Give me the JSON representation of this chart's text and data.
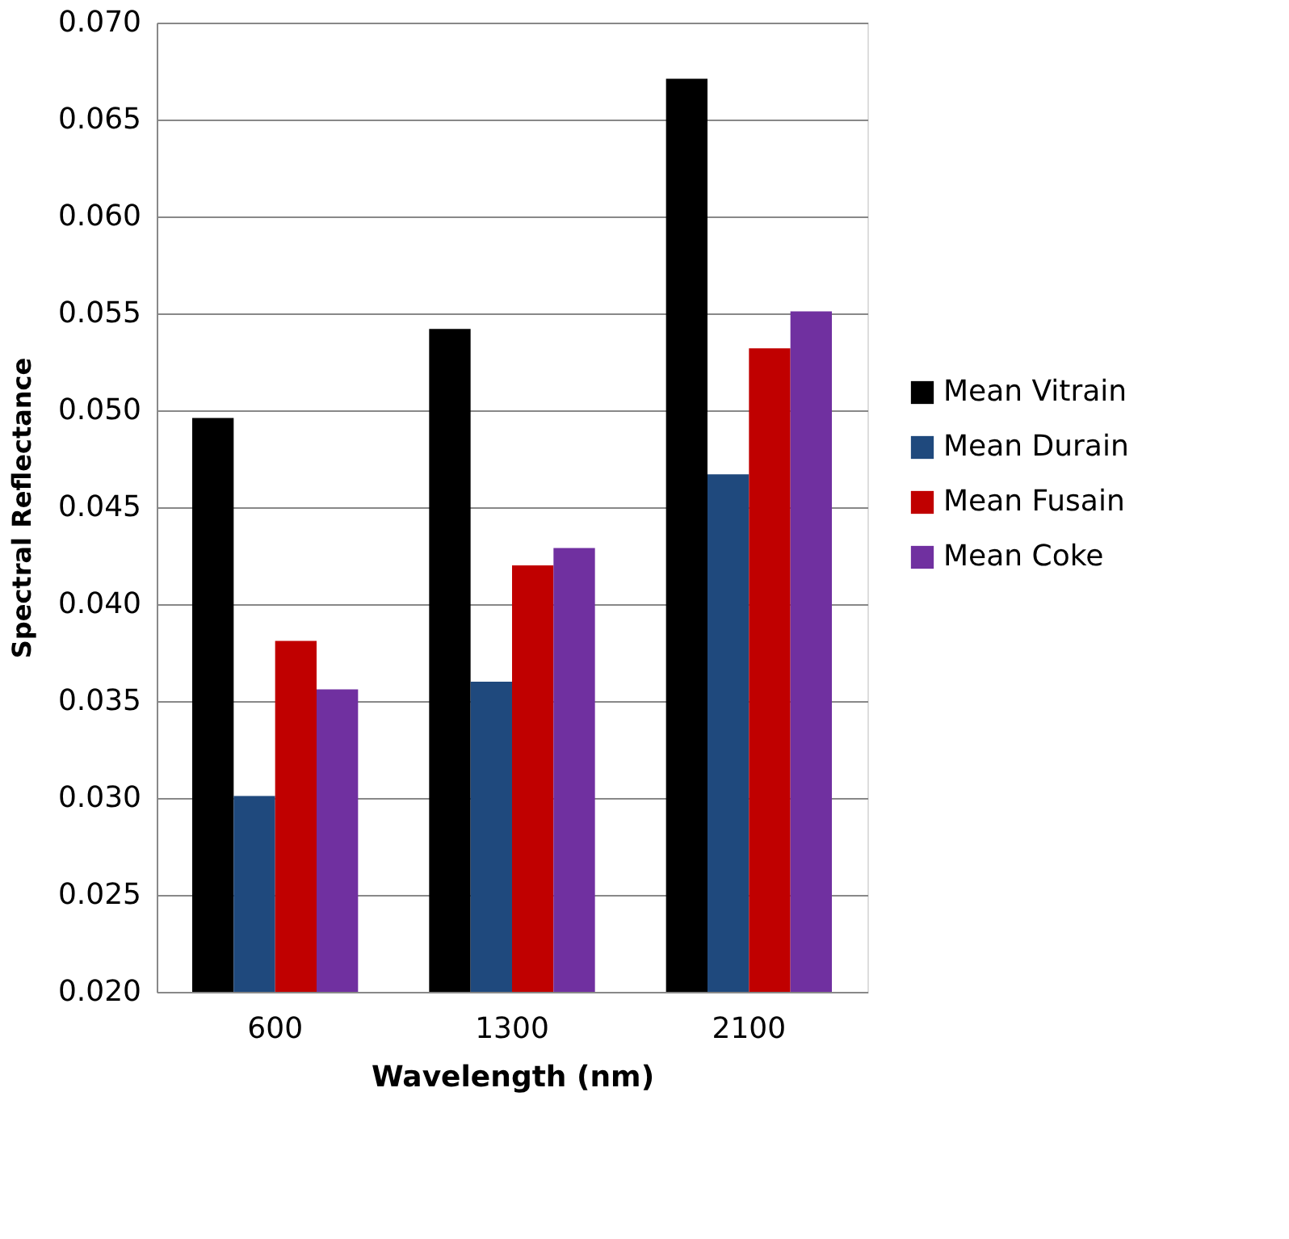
{
  "chart_data": {
    "type": "bar",
    "xlabel": "Wavelength (nm)",
    "ylabel": "Spectral Reflectance",
    "categories": [
      "600",
      "1300",
      "2100"
    ],
    "series": [
      {
        "name": "Mean Vitrain",
        "color": "#000000",
        "values": [
          0.0496,
          0.0542,
          0.0671
        ]
      },
      {
        "name": "Mean Durain",
        "color": "#1f497d",
        "values": [
          0.0301,
          0.036,
          0.0467
        ]
      },
      {
        "name": "Mean Fusain",
        "color": "#c00000",
        "values": [
          0.0381,
          0.042,
          0.0532
        ]
      },
      {
        "name": "Mean Coke",
        "color": "#7030a0",
        "values": [
          0.0356,
          0.0429,
          0.0551
        ]
      }
    ],
    "ylim": [
      0.02,
      0.07
    ],
    "yticks": [
      {
        "value": 0.02,
        "label": "0.020"
      },
      {
        "value": 0.025,
        "label": "0.025"
      },
      {
        "value": 0.03,
        "label": "0.030"
      },
      {
        "value": 0.035,
        "label": "0.035"
      },
      {
        "value": 0.04,
        "label": "0.040"
      },
      {
        "value": 0.045,
        "label": "0.045"
      },
      {
        "value": 0.05,
        "label": "0.050"
      },
      {
        "value": 0.055,
        "label": "0.055"
      },
      {
        "value": 0.06,
        "label": "0.060"
      },
      {
        "value": 0.065,
        "label": "0.065"
      },
      {
        "value": 0.07,
        "label": "0.070"
      }
    ],
    "grid": "y",
    "legend": "right"
  }
}
